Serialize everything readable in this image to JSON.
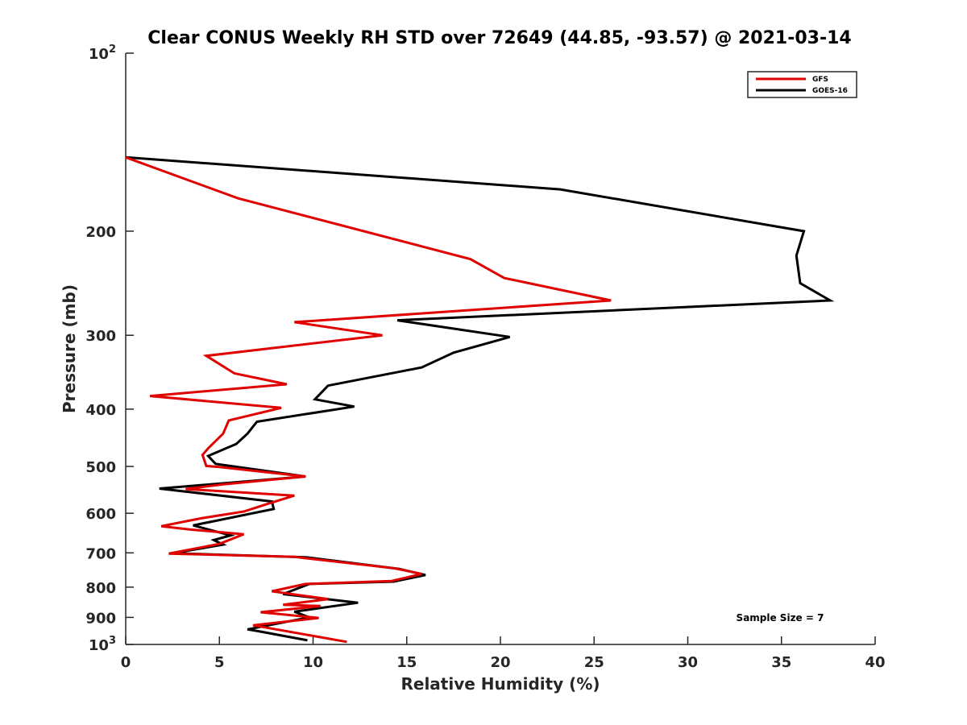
{
  "chart_data": {
    "type": "line",
    "title": "Clear CONUS Weekly RH STD over 72649 (44.85, -93.57) @ 2021-03-14",
    "xlabel": "Relative Humidity (%)",
    "ylabel": "Pressure (mb)",
    "xlim": [
      0,
      40
    ],
    "ylim": [
      100,
      1000
    ],
    "y_scale": "log",
    "y_reversed": true,
    "grid": false,
    "legend_position": "top-right",
    "x_ticks": [
      "0",
      "5",
      "10",
      "15",
      "20",
      "25",
      "30",
      "35",
      "40"
    ],
    "y_ticks": [
      {
        "value": 100,
        "base": "10",
        "exp": "2"
      },
      {
        "value": 200,
        "label": "200"
      },
      {
        "value": 300,
        "label": "300"
      },
      {
        "value": 400,
        "label": "400"
      },
      {
        "value": 500,
        "label": "500"
      },
      {
        "value": 600,
        "label": "600"
      },
      {
        "value": 700,
        "label": "700"
      },
      {
        "value": 800,
        "label": "800"
      },
      {
        "value": 900,
        "label": "900"
      },
      {
        "value": 1000,
        "base": "10",
        "exp": "3"
      }
    ],
    "annotation": "Sample Size = 7",
    "series": [
      {
        "name": "GFS",
        "color": "#e00000",
        "points": [
          {
            "x": 0,
            "p": 150
          },
          {
            "x": 6,
            "p": 176
          },
          {
            "x": 18.4,
            "p": 223
          },
          {
            "x": 20.2,
            "p": 240
          },
          {
            "x": 25.9,
            "p": 262
          },
          {
            "x": 9.0,
            "p": 285
          },
          {
            "x": 13.7,
            "p": 300
          },
          {
            "x": 4.3,
            "p": 325
          },
          {
            "x": 5.8,
            "p": 348
          },
          {
            "x": 8.6,
            "p": 363
          },
          {
            "x": 1.3,
            "p": 380
          },
          {
            "x": 8.3,
            "p": 398
          },
          {
            "x": 5.5,
            "p": 418
          },
          {
            "x": 5.2,
            "p": 440
          },
          {
            "x": 4.4,
            "p": 466
          },
          {
            "x": 4.1,
            "p": 478
          },
          {
            "x": 4.3,
            "p": 499
          },
          {
            "x": 5.0,
            "p": 501
          },
          {
            "x": 9.6,
            "p": 520
          },
          {
            "x": 5.2,
            "p": 536
          },
          {
            "x": 3.2,
            "p": 546
          },
          {
            "x": 9.0,
            "p": 560
          },
          {
            "x": 7.6,
            "p": 578
          },
          {
            "x": 6.3,
            "p": 596
          },
          {
            "x": 4.0,
            "p": 612
          },
          {
            "x": 1.9,
            "p": 631
          },
          {
            "x": 3.4,
            "p": 639
          },
          {
            "x": 6.3,
            "p": 651
          },
          {
            "x": 5.0,
            "p": 676
          },
          {
            "x": 2.3,
            "p": 702
          },
          {
            "x": 9.0,
            "p": 711
          },
          {
            "x": 14.3,
            "p": 743
          },
          {
            "x": 15.8,
            "p": 760
          },
          {
            "x": 14.2,
            "p": 781
          },
          {
            "x": 9.6,
            "p": 790
          },
          {
            "x": 7.8,
            "p": 813
          },
          {
            "x": 10.8,
            "p": 838
          },
          {
            "x": 8.4,
            "p": 857
          },
          {
            "x": 10.4,
            "p": 861
          },
          {
            "x": 7.2,
            "p": 882
          },
          {
            "x": 10.3,
            "p": 902
          },
          {
            "x": 6.8,
            "p": 928
          },
          {
            "x": 11.8,
            "p": 990
          }
        ]
      },
      {
        "name": "GOES-16",
        "color": "#000000",
        "points": [
          {
            "x": 0,
            "p": 150
          },
          {
            "x": 23.2,
            "p": 170
          },
          {
            "x": 36.2,
            "p": 200
          },
          {
            "x": 35.8,
            "p": 220
          },
          {
            "x": 36.0,
            "p": 245
          },
          {
            "x": 37.6,
            "p": 262
          },
          {
            "x": 14.5,
            "p": 283
          },
          {
            "x": 20.5,
            "p": 302
          },
          {
            "x": 17.5,
            "p": 321
          },
          {
            "x": 15.8,
            "p": 340
          },
          {
            "x": 10.8,
            "p": 365
          },
          {
            "x": 10.1,
            "p": 385
          },
          {
            "x": 12.2,
            "p": 396
          },
          {
            "x": 7.0,
            "p": 420
          },
          {
            "x": 6.5,
            "p": 440
          },
          {
            "x": 5.9,
            "p": 458
          },
          {
            "x": 4.4,
            "p": 480
          },
          {
            "x": 4.8,
            "p": 495
          },
          {
            "x": 9.6,
            "p": 520
          },
          {
            "x": 1.8,
            "p": 545
          },
          {
            "x": 7.8,
            "p": 573
          },
          {
            "x": 7.9,
            "p": 590
          },
          {
            "x": 3.6,
            "p": 629
          },
          {
            "x": 5.6,
            "p": 654
          },
          {
            "x": 4.7,
            "p": 666
          },
          {
            "x": 5.2,
            "p": 678
          },
          {
            "x": 2.5,
            "p": 701
          },
          {
            "x": 9.6,
            "p": 712
          },
          {
            "x": 14.6,
            "p": 745
          },
          {
            "x": 16.0,
            "p": 763
          },
          {
            "x": 14.3,
            "p": 783
          },
          {
            "x": 9.8,
            "p": 790
          },
          {
            "x": 8.4,
            "p": 822
          },
          {
            "x": 12.4,
            "p": 850
          },
          {
            "x": 9.0,
            "p": 880
          },
          {
            "x": 9.8,
            "p": 900
          },
          {
            "x": 6.5,
            "p": 943
          },
          {
            "x": 7.1,
            "p": 950
          },
          {
            "x": 9.7,
            "p": 984
          }
        ]
      }
    ]
  }
}
